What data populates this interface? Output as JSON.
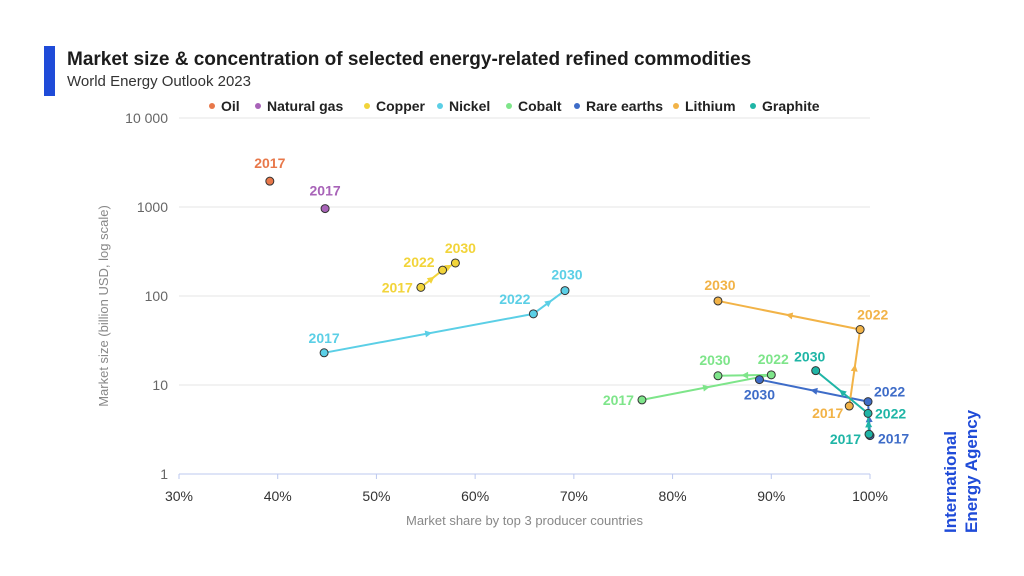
{
  "header": {
    "title": "Market size & concentration of selected energy-related refined commodities",
    "subtitle": "World Energy Outlook 2023"
  },
  "brand": {
    "line1": "International",
    "line2": "Energy Agency",
    "color": "#1f4bd8"
  },
  "chart_data": {
    "type": "scatter",
    "xlabel": "Market share by top 3 producer countries",
    "ylabel": "Market size (billion USD, log scale)",
    "x_ticks": [
      "30%",
      "40%",
      "50%",
      "60%",
      "70%",
      "80%",
      "90%",
      "100%"
    ],
    "y_ticks": [
      "1",
      "10",
      "100",
      "1000",
      "10 000"
    ],
    "xlim": [
      30,
      100
    ],
    "ylim": [
      1,
      10000
    ],
    "y_scale": "log",
    "grid": true,
    "legend_position": "top",
    "series": [
      {
        "name": "Oil",
        "color": "#e8784a",
        "points": [
          {
            "year": "2017",
            "x": 39.2,
            "y": 1950
          }
        ]
      },
      {
        "name": "Natural gas",
        "color": "#a863b8",
        "points": [
          {
            "year": "2017",
            "x": 44.8,
            "y": 960
          }
        ]
      },
      {
        "name": "Copper",
        "color": "#f2d43a",
        "points": [
          {
            "year": "2017",
            "x": 54.5,
            "y": 125
          },
          {
            "year": "2022",
            "x": 56.7,
            "y": 195
          },
          {
            "year": "2030",
            "x": 58.0,
            "y": 235
          }
        ]
      },
      {
        "name": "Nickel",
        "color": "#5bcfe6",
        "points": [
          {
            "year": "2017",
            "x": 44.7,
            "y": 23
          },
          {
            "year": "2022",
            "x": 65.9,
            "y": 63
          },
          {
            "year": "2030",
            "x": 69.1,
            "y": 115
          }
        ]
      },
      {
        "name": "Cobalt",
        "color": "#7ee58a",
        "points": [
          {
            "year": "2017",
            "x": 76.9,
            "y": 6.8
          },
          {
            "year": "2022",
            "x": 90.0,
            "y": 13.0
          },
          {
            "year": "2030",
            "x": 84.6,
            "y": 12.7
          }
        ]
      },
      {
        "name": "Rare earths",
        "color": "#3e6cc8",
        "points": [
          {
            "year": "2017",
            "x": 100.0,
            "y": 2.7
          },
          {
            "year": "2022",
            "x": 99.8,
            "y": 6.5
          },
          {
            "year": "2030",
            "x": 88.8,
            "y": 11.5
          }
        ]
      },
      {
        "name": "Lithium",
        "color": "#f2b347",
        "points": [
          {
            "year": "2017",
            "x": 97.9,
            "y": 5.8
          },
          {
            "year": "2022",
            "x": 99.0,
            "y": 42
          },
          {
            "year": "2030",
            "x": 84.6,
            "y": 88
          }
        ]
      },
      {
        "name": "Graphite",
        "color": "#1fb5a6",
        "points": [
          {
            "year": "2017",
            "x": 99.9,
            "y": 2.8
          },
          {
            "year": "2022",
            "x": 99.8,
            "y": 4.8
          },
          {
            "year": "2030",
            "x": 94.5,
            "y": 14.5
          }
        ]
      }
    ]
  }
}
